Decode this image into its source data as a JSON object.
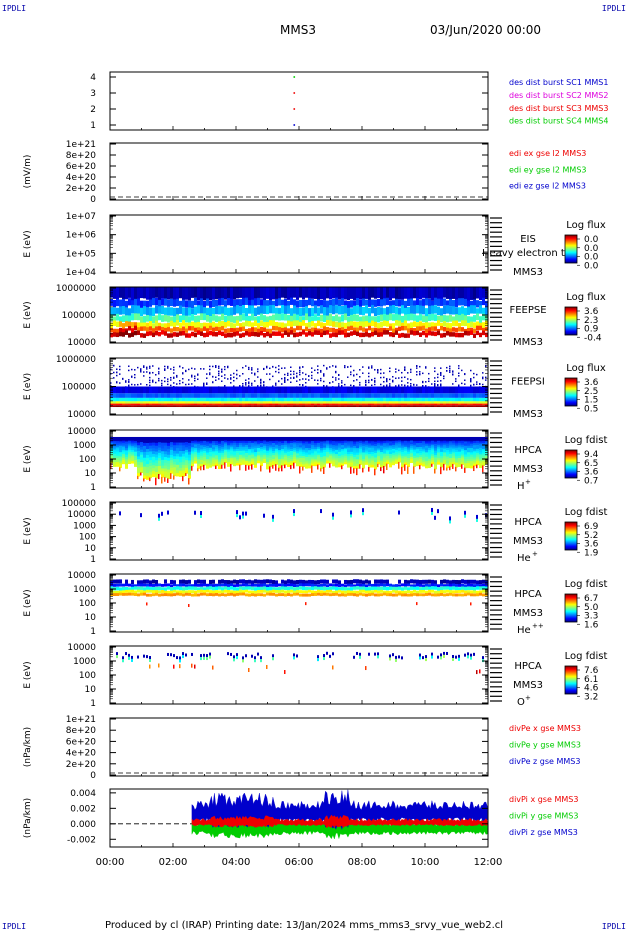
{
  "corners": {
    "label": "IPDLI"
  },
  "header": {
    "spacecraft": "MMS3",
    "date": "03/Jun/2020 00:00"
  },
  "footer": {
    "text": "Produced by cl (IRAP)   Printing date: 13/Jan/2024   mms_mms3_srvy_vue_web2.cl"
  },
  "colors": {
    "red": "#ee0000",
    "magenta": "#dd00dd",
    "green": "#00cc00",
    "blue": "#0000cc"
  },
  "chart_data": [
    {
      "id": "p1",
      "type": "scatter",
      "ylabel": "",
      "y_ticks": [
        "4",
        "3",
        "2",
        "1"
      ],
      "ylim": [
        0.5,
        4.5
      ],
      "legend": [
        {
          "label": "des dist burst SC1 MMS1",
          "color": "#0000cc"
        },
        {
          "label": "des dist burst SC2 MMS2",
          "color": "#dd00dd"
        },
        {
          "label": "des dist burst SC3 MMS3",
          "color": "#ee0000"
        },
        {
          "label": "des dist burst SC4 MMS4",
          "color": "#00cc00"
        }
      ],
      "points": [
        {
          "x": 5.85,
          "y": 4,
          "color": "#00cc00"
        },
        {
          "x": 5.85,
          "y": 3,
          "color": "#ee0000"
        },
        {
          "x": 5.85,
          "y": 2,
          "color": "#ee0000"
        },
        {
          "x": 5.85,
          "y": 1,
          "color": "#0000cc"
        }
      ]
    },
    {
      "id": "p2",
      "type": "line",
      "ylabel": "(mV/m)",
      "y_ticks": [
        "1e+21",
        "8e+20",
        "6e+20",
        "4e+20",
        "2e+20",
        "0"
      ],
      "ylim": [
        0,
        1e+21
      ],
      "legend": [
        {
          "label": "edi ex gse l2 MMS3",
          "color": "#ee0000"
        },
        {
          "label": "edi ey gse l2 MMS3",
          "color": "#00cc00"
        },
        {
          "label": "edi ez gse l2 MMS3",
          "color": "#0000cc"
        }
      ]
    },
    {
      "id": "p3",
      "type": "heatmap",
      "ylabel": "E (eV)",
      "y_ticks": [
        "1e+07",
        "1e+06",
        "1e+05",
        "1e+04"
      ],
      "instrument": [
        "EIS",
        "MMS3"
      ],
      "overlay_text": "Heavy electron to",
      "colorbar": {
        "title": "Log flux",
        "ticks": [
          "0.0",
          "0.0",
          "0.0",
          "0.0"
        ]
      }
    },
    {
      "id": "p4",
      "type": "heatmap",
      "ylabel": "E (eV)",
      "y_ticks": [
        "1000000",
        "100000",
        "10000"
      ],
      "instrument": [
        "FEEPSE",
        "MMS3"
      ],
      "colorbar": {
        "title": "Log flux",
        "ticks": [
          "3.6",
          "2.3",
          "0.9",
          "-0.4"
        ]
      }
    },
    {
      "id": "p5",
      "type": "heatmap",
      "ylabel": "E (eV)",
      "y_ticks": [
        "1000000",
        "100000",
        "10000"
      ],
      "instrument": [
        "FEEPSI",
        "MMS3"
      ],
      "colorbar": {
        "title": "Log flux",
        "ticks": [
          "3.6",
          "2.5",
          "1.5",
          "0.5"
        ]
      }
    },
    {
      "id": "p6",
      "type": "heatmap",
      "ylabel": "E (eV)",
      "y_ticks": [
        "10000",
        "1000",
        "100",
        "10",
        "1"
      ],
      "instrument": [
        "HPCA",
        "MMS3"
      ],
      "species": "H",
      "charge": "+",
      "colorbar": {
        "title": "Log fdist",
        "ticks": [
          "9.4",
          "6.5",
          "3.6",
          "0.7"
        ]
      }
    },
    {
      "id": "p7",
      "type": "heatmap",
      "ylabel": "E (eV)",
      "y_ticks": [
        "100000",
        "10000",
        "1000",
        "100",
        "10",
        "1"
      ],
      "instrument": [
        "HPCA",
        "MMS3"
      ],
      "species": "He",
      "charge": "+",
      "colorbar": {
        "title": "Log fdist",
        "ticks": [
          "6.9",
          "5.2",
          "3.6",
          "1.9"
        ]
      }
    },
    {
      "id": "p8",
      "type": "heatmap",
      "ylabel": "E (eV)",
      "y_ticks": [
        "10000",
        "1000",
        "100",
        "10",
        "1"
      ],
      "instrument": [
        "HPCA",
        "MMS3"
      ],
      "species": "He",
      "charge": "++",
      "colorbar": {
        "title": "Log fdist",
        "ticks": [
          "6.7",
          "5.0",
          "3.3",
          "1.6"
        ]
      }
    },
    {
      "id": "p9",
      "type": "heatmap",
      "ylabel": "E (eV)",
      "y_ticks": [
        "10000",
        "1000",
        "100",
        "10",
        "1"
      ],
      "instrument": [
        "HPCA",
        "MMS3"
      ],
      "species": "O",
      "charge": "+",
      "colorbar": {
        "title": "Log fdist",
        "ticks": [
          "7.6",
          "6.1",
          "4.6",
          "3.2"
        ]
      }
    },
    {
      "id": "p10",
      "type": "line",
      "ylabel": "(nPa/km)",
      "y_ticks": [
        "1e+21",
        "8e+20",
        "6e+20",
        "4e+20",
        "2e+20",
        "0"
      ],
      "ylim": [
        0,
        1e+21
      ],
      "legend": [
        {
          "label": "divPe x gse MMS3",
          "color": "#ee0000"
        },
        {
          "label": "divPe y gse MMS3",
          "color": "#00cc00"
        },
        {
          "label": "divPe z gse MMS3",
          "color": "#0000cc"
        }
      ]
    },
    {
      "id": "p11",
      "type": "line",
      "ylabel": "(nPa/km)",
      "y_ticks": [
        "0.004",
        "0.002",
        "0.000",
        "-0.002"
      ],
      "ylim": [
        -0.003,
        0.0045
      ],
      "legend": [
        {
          "label": "divPi x gse MMS3",
          "color": "#ee0000"
        },
        {
          "label": "divPi y gse MMS3",
          "color": "#00cc00"
        },
        {
          "label": "divPi z gse MMS3",
          "color": "#0000cc"
        }
      ],
      "data_start_hour": 2.6
    }
  ],
  "x_axis": {
    "ticks": [
      "00:00",
      "02:00",
      "04:00",
      "06:00",
      "08:00",
      "10:00",
      "12:00"
    ],
    "range_hours": [
      0,
      12
    ]
  }
}
